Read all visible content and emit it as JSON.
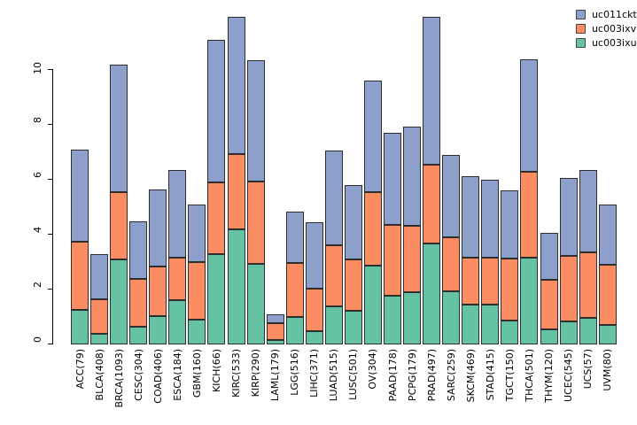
{
  "chart_data": {
    "type": "bar",
    "stacked": true,
    "title": "",
    "xlabel": "",
    "ylabel": "",
    "y_ticks": [
      "0",
      "2",
      "4",
      "6",
      "8",
      "10"
    ],
    "ylim": [
      0,
      12.4
    ],
    "grid": false,
    "legend_position": "top-right",
    "legend_order": [
      "uc011ckt",
      "uc003ixv",
      "uc003ixu"
    ],
    "categories": [
      "ACC(79)",
      "BLCA(408)",
      "BRCA(1093)",
      "CESC(304)",
      "COAD(406)",
      "ESCA(184)",
      "GBM(160)",
      "KICH(66)",
      "KIRC(533)",
      "KIRP(290)",
      "LAML(179)",
      "LGG(516)",
      "LIHC(371)",
      "LUAD(515)",
      "LUSC(501)",
      "OV(304)",
      "PAAD(178)",
      "PCPG(179)",
      "PRAD(497)",
      "SARC(259)",
      "SKCM(469)",
      "STAD(415)",
      "TGCT(150)",
      "THCA(501)",
      "THYM(120)",
      "UCEC(545)",
      "UCS(57)",
      "UVM(80)"
    ],
    "series": [
      {
        "name": "uc003ixu",
        "color": "#66C2A5",
        "values": [
          1.27,
          0.4,
          3.1,
          0.65,
          1.04,
          1.6,
          0.9,
          3.28,
          4.19,
          2.92,
          0.15,
          1.01,
          0.48,
          1.4,
          1.22,
          2.88,
          1.78,
          1.9,
          3.68,
          1.94,
          1.45,
          1.45,
          0.86,
          3.15,
          0.55,
          0.85,
          0.96,
          0.72
        ]
      },
      {
        "name": "uc003ixv",
        "color": "#FC8D62",
        "values": [
          2.48,
          1.25,
          2.45,
          1.75,
          1.81,
          1.57,
          2.11,
          2.63,
          2.75,
          3.02,
          0.62,
          1.97,
          1.56,
          2.2,
          1.88,
          2.68,
          2.56,
          2.43,
          2.88,
          1.96,
          1.72,
          1.72,
          2.26,
          3.13,
          1.8,
          2.37,
          2.39,
          2.19
        ]
      },
      {
        "name": "uc011ckt",
        "color": "#8DA0CB",
        "values": [
          3.35,
          1.65,
          4.65,
          2.1,
          2.8,
          3.18,
          2.09,
          5.19,
          5.01,
          4.43,
          0.33,
          1.87,
          2.41,
          3.45,
          2.7,
          4.04,
          3.36,
          3.62,
          5.39,
          3.0,
          2.96,
          2.83,
          2.48,
          4.12,
          1.7,
          2.83,
          3.0,
          2.19
        ]
      }
    ]
  }
}
